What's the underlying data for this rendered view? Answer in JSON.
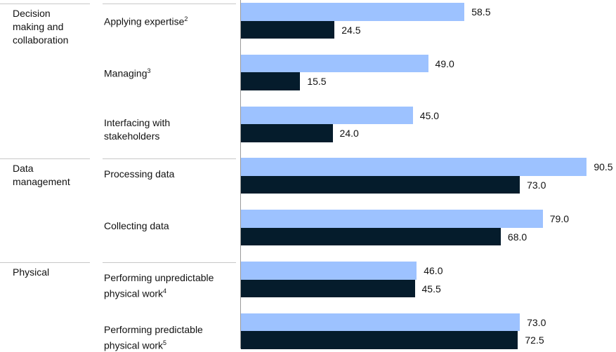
{
  "chart_data": {
    "type": "bar",
    "orientation": "horizontal",
    "colors": {
      "series_1": "#9dc2ff",
      "series_2": "#051c2c"
    },
    "groups": [
      {
        "label": "Decision\nmaking and\ncollaboration",
        "start": 0,
        "end": 3
      },
      {
        "label": "Data\nmanagement",
        "start": 3,
        "end": 5
      },
      {
        "label": "Physical",
        "start": 5,
        "end": 7
      }
    ],
    "categories": [
      {
        "name": "Applying expertise",
        "sup": "2"
      },
      {
        "name": "Managing",
        "sup": "3"
      },
      {
        "name": "Interfacing with\nstakeholders",
        "sup": ""
      },
      {
        "name": "Processing data",
        "sup": ""
      },
      {
        "name": "Collecting data",
        "sup": ""
      },
      {
        "name": "Performing unpredictable\nphysical work",
        "sup": "4"
      },
      {
        "name": "Performing predictable\nphysical work",
        "sup": "5"
      }
    ],
    "series": [
      {
        "values": [
          58.5,
          49.0,
          45.0,
          90.5,
          79.0,
          46.0,
          73.0
        ]
      },
      {
        "values": [
          24.5,
          15.5,
          24.0,
          73.0,
          68.0,
          45.5,
          72.5
        ]
      }
    ],
    "xlim": [
      0,
      100
    ],
    "value_format": "one_decimal"
  }
}
